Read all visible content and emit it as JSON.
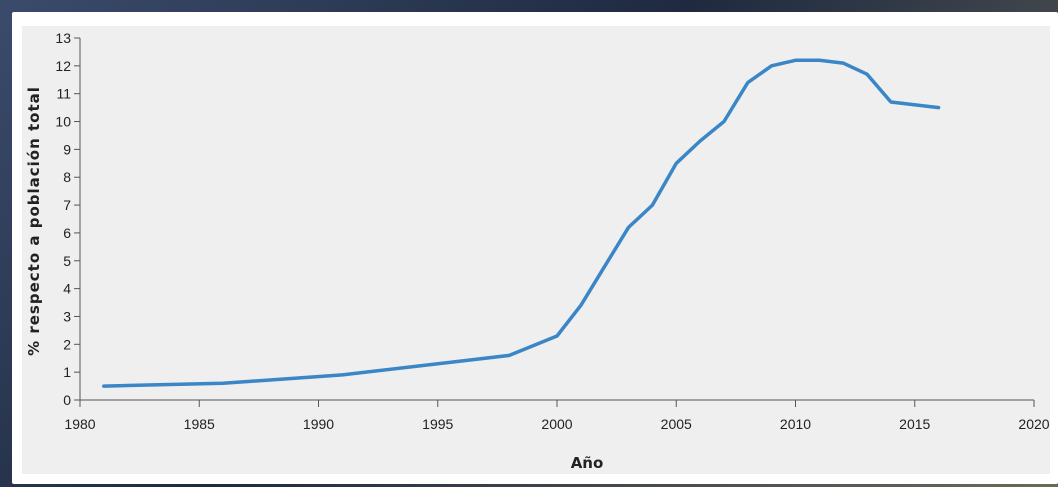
{
  "chart_data": {
    "type": "line",
    "title": "",
    "xlabel": "Año",
    "ylabel": "% respecto a población total",
    "xlim": [
      1980,
      2020
    ],
    "ylim": [
      0,
      13
    ],
    "x_ticks": [
      1980,
      1985,
      1990,
      1995,
      2000,
      2005,
      2010,
      2015,
      2020
    ],
    "y_ticks": [
      0,
      1,
      2,
      3,
      4,
      5,
      6,
      7,
      8,
      9,
      10,
      11,
      12,
      13
    ],
    "grid": false,
    "series": [
      {
        "name": "",
        "color": "#3a86c6",
        "x": [
          1981,
          1986,
          1991,
          1996,
          1998,
          2000,
          2001,
          2002,
          2003,
          2004,
          2005,
          2006,
          2007,
          2008,
          2009,
          2010,
          2011,
          2012,
          2013,
          2014,
          2016
        ],
        "y": [
          0.5,
          0.6,
          0.9,
          1.4,
          1.6,
          2.3,
          3.4,
          4.8,
          6.2,
          7.0,
          8.5,
          9.3,
          10.0,
          11.4,
          12.0,
          12.2,
          12.2,
          12.1,
          11.7,
          10.7,
          10.5
        ]
      }
    ]
  }
}
